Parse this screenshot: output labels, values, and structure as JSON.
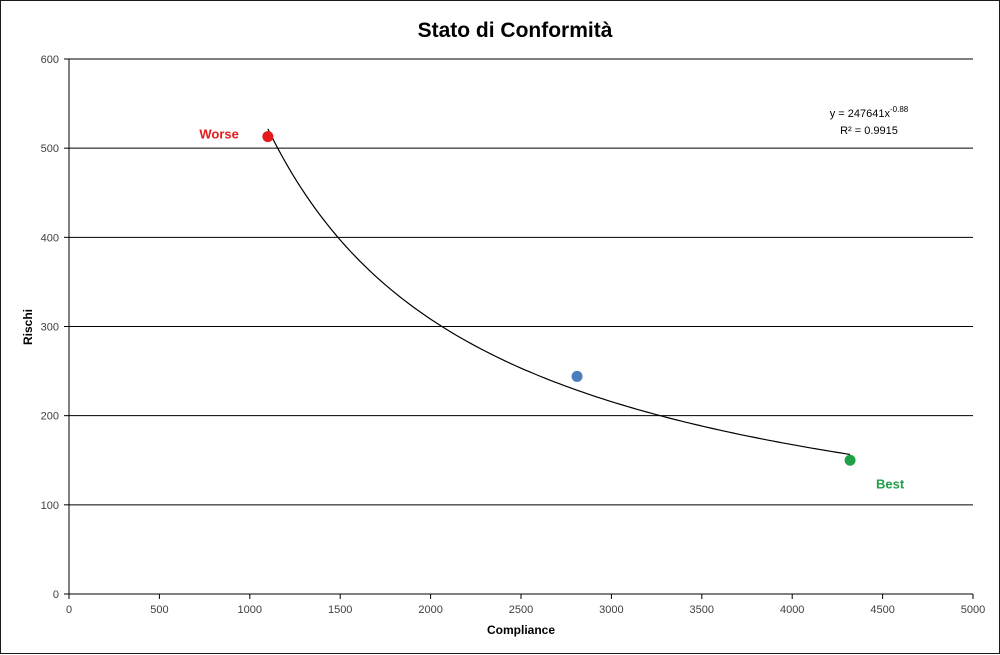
{
  "chart_data": {
    "type": "scatter",
    "title": "Stato di Conformità",
    "xlabel": "Compliance",
    "ylabel": "Rischi",
    "xlim": [
      0,
      5000
    ],
    "ylim": [
      0,
      600
    ],
    "x_ticks": [
      "0",
      "500",
      "1000",
      "1500",
      "2000",
      "2500",
      "3000",
      "3500",
      "4000",
      "4500",
      "5000"
    ],
    "y_ticks": [
      "0",
      "100",
      "200",
      "300",
      "400",
      "500",
      "600"
    ],
    "grid": "horizontal",
    "points": [
      {
        "x": 1100,
        "y": 513,
        "color": "#e31a1c",
        "label": "Worse",
        "label_color": "#e31a1c"
      },
      {
        "x": 2810,
        "y": 244,
        "color": "#4a7ebb",
        "label": "",
        "label_color": ""
      },
      {
        "x": 4320,
        "y": 150,
        "color": "#21a04a",
        "label": "Best",
        "label_color": "#21a04a"
      }
    ],
    "trendline": {
      "type": "power",
      "coefficient": 247641,
      "exponent": -0.88,
      "x_range": [
        1100,
        4320
      ],
      "equation_prefix": "y = 247641x",
      "equation_exponent": "-0.88",
      "r_squared": "R² = 0.9915"
    }
  }
}
